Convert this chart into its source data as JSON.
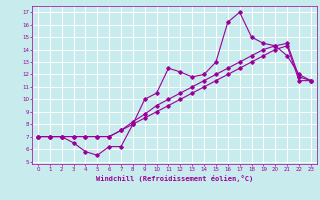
{
  "xlabel": "Windchill (Refroidissement éolien,°C)",
  "bg_color": "#c8ecee",
  "grid_color": "#ffffff",
  "line_color": "#990099",
  "xlim": [
    -0.5,
    23.5
  ],
  "ylim": [
    4.8,
    17.5
  ],
  "xticks": [
    0,
    1,
    2,
    3,
    4,
    5,
    6,
    7,
    8,
    9,
    10,
    11,
    12,
    13,
    14,
    15,
    16,
    17,
    18,
    19,
    20,
    21,
    22,
    23
  ],
  "yticks": [
    5,
    6,
    7,
    8,
    9,
    10,
    11,
    12,
    13,
    14,
    15,
    16,
    17
  ],
  "line1_x": [
    0,
    1,
    2,
    3,
    4,
    5,
    6,
    7,
    8,
    9,
    10,
    11,
    12,
    13,
    14,
    15,
    16,
    17,
    18,
    19,
    20,
    21,
    22,
    23
  ],
  "line1_y": [
    7.0,
    7.0,
    7.0,
    6.5,
    5.8,
    5.5,
    6.2,
    6.2,
    8.0,
    10.0,
    10.5,
    12.5,
    12.2,
    11.8,
    12.0,
    13.0,
    16.2,
    17.0,
    15.0,
    14.5,
    14.3,
    13.5,
    12.0,
    11.5
  ],
  "line2_x": [
    0,
    1,
    2,
    3,
    4,
    5,
    6,
    7,
    8,
    9,
    10,
    11,
    12,
    13,
    14,
    15,
    16,
    17,
    18,
    19,
    20,
    21,
    22,
    23
  ],
  "line2_y": [
    7.0,
    7.0,
    7.0,
    7.0,
    7.0,
    7.0,
    7.0,
    7.5,
    8.0,
    8.5,
    9.0,
    9.5,
    10.0,
    10.5,
    11.0,
    11.5,
    12.0,
    12.5,
    13.0,
    13.5,
    14.0,
    14.3,
    11.5,
    11.5
  ],
  "line3_x": [
    0,
    1,
    2,
    3,
    4,
    5,
    6,
    7,
    8,
    9,
    10,
    11,
    12,
    13,
    14,
    15,
    16,
    17,
    18,
    19,
    20,
    21,
    22,
    23
  ],
  "line3_y": [
    7.0,
    7.0,
    7.0,
    7.0,
    7.0,
    7.0,
    7.0,
    7.5,
    8.2,
    8.8,
    9.5,
    10.0,
    10.5,
    11.0,
    11.5,
    12.0,
    12.5,
    13.0,
    13.5,
    14.0,
    14.3,
    14.5,
    11.8,
    11.5
  ]
}
